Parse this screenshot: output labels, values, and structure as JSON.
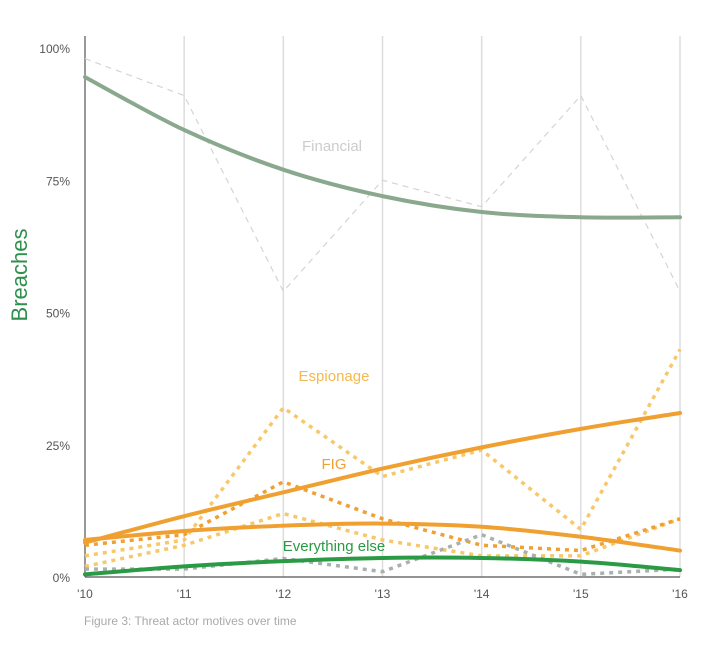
{
  "chart_data": {
    "type": "line",
    "ylabel": "Breaches",
    "x": [
      "'10",
      "'11",
      "'12",
      "'13",
      "'14",
      "'15",
      "'16"
    ],
    "ylim": [
      0,
      100
    ],
    "ytick_labels": [
      "0%",
      "25%",
      "50%",
      "75%",
      "100%"
    ],
    "ytick_values": [
      0,
      25,
      50,
      75,
      100
    ],
    "grid": "vertical",
    "colors": {
      "financial_raw": "#d4d4d4",
      "financial_trend": "#8aa88e",
      "fig": "#f0a030",
      "espionage": "#f7c86a",
      "everything_else": "#2a9a45",
      "everything_else_raw": "#a9b0ad",
      "financial_label": "#cccccc",
      "espionage_label": "#f5b94d",
      "ylabel_color": "#2f8f4d"
    },
    "annotations": [
      "Financial",
      "Espionage",
      "FIG",
      "Everything else"
    ],
    "series": [
      {
        "name": "Financial",
        "style": "dashed",
        "color_key": "financial_raw",
        "values": [
          98,
          91,
          54,
          75,
          70,
          91,
          54
        ]
      },
      {
        "name": "Financial",
        "style": "trend",
        "color_key": "financial_trend",
        "values": [
          94.5,
          84.5,
          77,
          72,
          69,
          68,
          68
        ]
      },
      {
        "name": "Espionage",
        "style": "dotted",
        "color_key": "espionage",
        "values": [
          4,
          7,
          32,
          19,
          24,
          9,
          43
        ]
      },
      {
        "name": "Espionage",
        "style": "dotted",
        "color_key": "espionage",
        "values": [
          2,
          6,
          12,
          7,
          4,
          4,
          11
        ]
      },
      {
        "name": "FIG",
        "style": "dotted",
        "color_key": "fig",
        "values": [
          6,
          8,
          18,
          11,
          6,
          5,
          11
        ]
      },
      {
        "name": "FIG",
        "style": "trend",
        "color_key": "fig",
        "values": [
          6.5,
          11.5,
          16,
          20.5,
          24.5,
          28,
          31
        ]
      },
      {
        "name": "Espionage",
        "style": "trend",
        "color_key": "fig",
        "values": [
          7,
          8.7,
          9.7,
          10.1,
          9.5,
          7.6,
          5
        ]
      },
      {
        "name": "Everything else",
        "style": "dotted",
        "color_key": "everything_else_raw",
        "values": [
          1.5,
          1.5,
          3.5,
          1,
          8,
          0.5,
          1.5
        ]
      },
      {
        "name": "Everything else",
        "style": "trend",
        "color_key": "everything_else",
        "values": [
          0.5,
          2,
          3,
          3.6,
          3.6,
          2.9,
          1.3
        ]
      }
    ]
  },
  "caption": "Figure 3: Threat actor motives over time"
}
